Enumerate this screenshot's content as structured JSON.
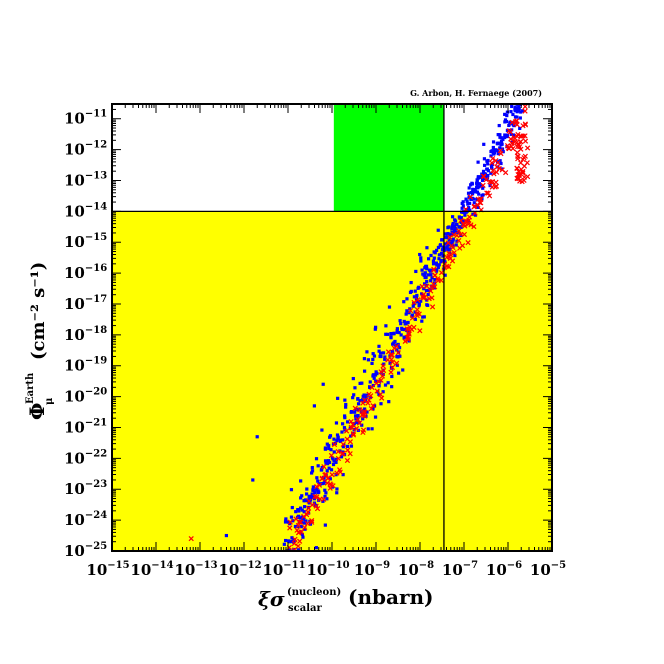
{
  "credit": "G. Arbon, H. Fernaege (2007)",
  "chart_data": {
    "type": "scatter",
    "title": "",
    "xlabel": {
      "main": "ξσ",
      "superscript": "(nucleon)",
      "subscript": "scalar",
      "unit": "(nbarn)"
    },
    "ylabel": {
      "main": "Φ",
      "subscript": "μ",
      "superscript": "Earth",
      "unit": "(cm⁻² s⁻¹)"
    },
    "x_scale": "log",
    "y_scale": "log",
    "xlim": [
      1e-15,
      1e-05
    ],
    "ylim": [
      1e-25,
      3e-11
    ],
    "x_ticks": [
      {
        "value": 1e-15,
        "base": "10",
        "exp": "−15"
      },
      {
        "value": 1e-14,
        "base": "10",
        "exp": "−14"
      },
      {
        "value": 1e-13,
        "base": "10",
        "exp": "−13"
      },
      {
        "value": 1e-12,
        "base": "10",
        "exp": "−12"
      },
      {
        "value": 1e-11,
        "base": "10",
        "exp": "−11"
      },
      {
        "value": 1e-10,
        "base": "10",
        "exp": "−10"
      },
      {
        "value": 1e-09,
        "base": "10",
        "exp": "−9"
      },
      {
        "value": 1e-08,
        "base": "10",
        "exp": "−8"
      },
      {
        "value": 1e-07,
        "base": "10",
        "exp": "−7"
      },
      {
        "value": 1e-06,
        "base": "10",
        "exp": "−6"
      },
      {
        "value": 1e-05,
        "base": "10",
        "exp": "−5"
      }
    ],
    "y_ticks": [
      {
        "value": 1e-11,
        "base": "10",
        "exp": "−11"
      },
      {
        "value": 1e-12,
        "base": "10",
        "exp": "−12"
      },
      {
        "value": 1e-13,
        "base": "10",
        "exp": "−13"
      },
      {
        "value": 1e-14,
        "base": "10",
        "exp": "−14"
      },
      {
        "value": 1e-15,
        "base": "10",
        "exp": "−15"
      },
      {
        "value": 1e-16,
        "base": "10",
        "exp": "−16"
      },
      {
        "value": 1e-17,
        "base": "10",
        "exp": "−17"
      },
      {
        "value": 1e-18,
        "base": "10",
        "exp": "−18"
      },
      {
        "value": 1e-19,
        "base": "10",
        "exp": "−19"
      },
      {
        "value": 1e-20,
        "base": "10",
        "exp": "−20"
      },
      {
        "value": 1e-21,
        "base": "10",
        "exp": "−21"
      },
      {
        "value": 1e-22,
        "base": "10",
        "exp": "−22"
      },
      {
        "value": 1e-23,
        "base": "10",
        "exp": "−23"
      },
      {
        "value": 1e-24,
        "base": "10",
        "exp": "−24"
      },
      {
        "value": 1e-25,
        "base": "10",
        "exp": "−25"
      }
    ],
    "regions": [
      {
        "name": "excluded-flux-region",
        "color": "#ffff00",
        "x_range": [
          1e-15,
          1e-05
        ],
        "y_range": [
          1e-25,
          1e-14
        ]
      },
      {
        "name": "allowed-region",
        "color": "#00ff00",
        "x_range": [
          1.1e-10,
          3.5e-08
        ],
        "y_range": [
          1e-14,
          3e-11
        ]
      }
    ],
    "lines": [
      {
        "name": "flux-limit-line",
        "orientation": "horizontal",
        "value": 1e-14
      },
      {
        "name": "cross-section-limit-line",
        "orientation": "vertical",
        "value": 3.5e-08
      }
    ],
    "series": [
      {
        "marker": "square",
        "color": "#0000ff"
      },
      {
        "marker": "cross",
        "color": "#ff0000"
      }
    ]
  }
}
